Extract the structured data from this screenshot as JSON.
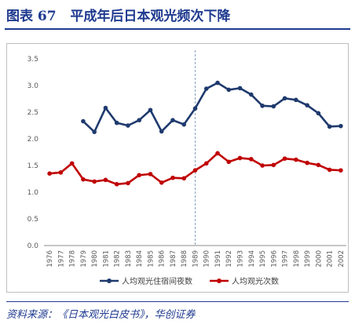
{
  "header": {
    "figure_label": "图表 67",
    "title": "平成年后日本观光频次下降"
  },
  "footer": {
    "source": "资料来源：《日本观光白皮书》，华创证券"
  },
  "chart_data": {
    "type": "line",
    "x": [
      1976,
      1977,
      1978,
      1979,
      1980,
      1981,
      1982,
      1983,
      1984,
      1985,
      1986,
      1987,
      1988,
      1989,
      1990,
      1991,
      1992,
      1993,
      1994,
      1995,
      1996,
      1997,
      1998,
      1999,
      2000,
      2001,
      2002
    ],
    "ylim": [
      0,
      3.5
    ],
    "yticks": [
      "0.0",
      "0.5",
      "1.0",
      "1.5",
      "2.0",
      "2.5",
      "3.0",
      "3.5"
    ],
    "grid": false,
    "legend_position": "bottom",
    "reference_line_x": 1989,
    "series": [
      {
        "name": "人均观光住宿间夜数",
        "color": "#1f3a6e",
        "values": [
          null,
          null,
          null,
          2.33,
          2.13,
          2.58,
          2.3,
          2.25,
          2.35,
          2.54,
          2.14,
          2.35,
          2.27,
          2.57,
          2.94,
          3.05,
          2.92,
          2.95,
          2.83,
          2.62,
          2.61,
          2.76,
          2.73,
          2.63,
          2.48,
          2.23,
          2.24
        ]
      },
      {
        "name": "人均观光次数",
        "color": "#c00000",
        "values": [
          1.35,
          1.37,
          1.54,
          1.24,
          1.2,
          1.23,
          1.15,
          1.17,
          1.32,
          1.34,
          1.18,
          1.27,
          1.26,
          1.41,
          1.54,
          1.73,
          1.57,
          1.64,
          1.62,
          1.5,
          1.51,
          1.63,
          1.61,
          1.55,
          1.51,
          1.42,
          1.41
        ]
      }
    ]
  }
}
